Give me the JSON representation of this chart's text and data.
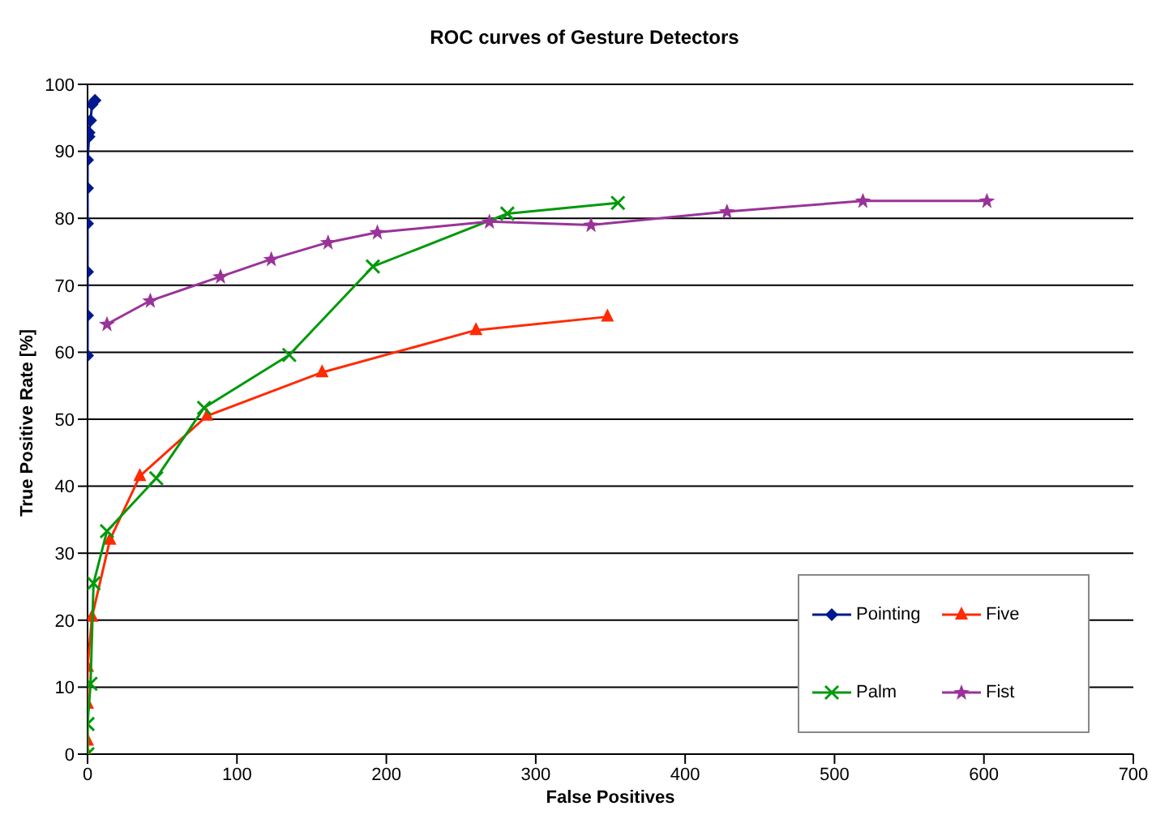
{
  "chart_data": {
    "type": "line",
    "title": "ROC curves of Gesture Detectors",
    "xlabel": "False Positives",
    "ylabel": "True Positive Rate [%]",
    "xlim": [
      0,
      700
    ],
    "xticks": [
      0,
      100,
      200,
      300,
      400,
      500,
      600,
      700
    ],
    "ylim": [
      0,
      100
    ],
    "yticks": [
      0,
      10,
      20,
      30,
      40,
      50,
      60,
      70,
      80,
      90,
      100
    ],
    "grid": "y",
    "legend": "bottom right",
    "series": [
      {
        "name": "Pointing",
        "color": "#00188f",
        "marker": "diamond",
        "x": [
          0,
          0,
          0,
          0,
          0,
          0,
          1,
          1,
          2,
          3,
          5
        ],
        "values": [
          59.5,
          65.5,
          72,
          79.2,
          84.5,
          88.7,
          92.2,
          92.8,
          94.6,
          97,
          97.6
        ]
      },
      {
        "name": "Five",
        "color": "#ff2a00",
        "marker": "triangle",
        "x": [
          0,
          0,
          0,
          0,
          3,
          15,
          35,
          80,
          157,
          260,
          348
        ],
        "values": [
          0,
          2,
          7.5,
          13,
          20.5,
          32,
          41.5,
          50.5,
          57,
          63.3,
          65.3
        ]
      },
      {
        "name": "Palm",
        "color": "#00990a",
        "marker": "cross",
        "x": [
          0,
          0,
          2,
          4,
          13,
          46,
          78,
          135,
          191,
          281,
          355
        ],
        "values": [
          0,
          4.5,
          10.5,
          25.5,
          33.3,
          41.2,
          51.7,
          59.6,
          72.8,
          80.7,
          82.3
        ]
      },
      {
        "name": "Fist",
        "color": "#993399",
        "marker": "star",
        "x": [
          13,
          42,
          89,
          123,
          161,
          194,
          269,
          337,
          428,
          519,
          602
        ],
        "values": [
          64.2,
          67.7,
          71.3,
          73.9,
          76.4,
          77.9,
          79.5,
          79.0,
          81.0,
          82.6,
          82.6
        ]
      }
    ]
  }
}
